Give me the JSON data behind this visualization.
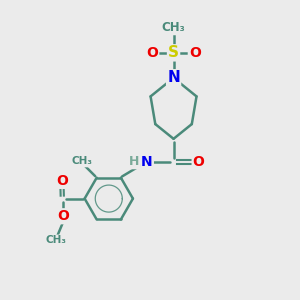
{
  "bg_color": "#ebebeb",
  "bond_color": "#4a8a7a",
  "atom_colors": {
    "N": "#0000ee",
    "O": "#ee0000",
    "S": "#cccc00",
    "C": "#4a8a7a",
    "H": "#7aaa99"
  },
  "figsize": [
    3.0,
    3.0
  ],
  "dpi": 100,
  "xlim": [
    0,
    10
  ],
  "ylim": [
    0,
    10
  ]
}
